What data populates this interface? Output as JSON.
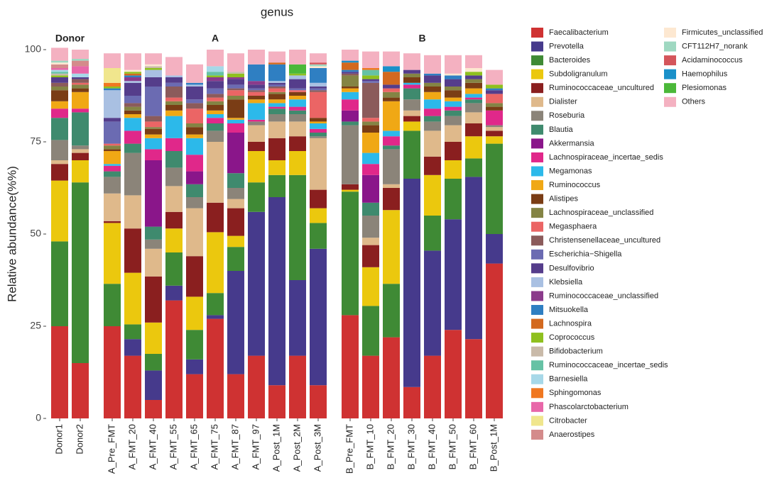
{
  "chart_data": {
    "type": "stacked_bar",
    "title": "genus",
    "y_label": "Relative abundance(%%)",
    "categories": [
      "Donor1",
      "Donor2",
      "A_Pre_FMT",
      "A_FMT_20",
      "A_FMT_40",
      "A_FMT_55",
      "A_FMT_65",
      "A_FMT_75",
      "A_FMT_87",
      "A_FMT_97",
      "A_Post_1M",
      "A_Post_2M",
      "A_Post_3M",
      "B_Pre_FMT",
      "B_FMT_10",
      "B_FMT_20",
      "B_FMT_30",
      "B_FMT_40",
      "B_FMT_50",
      "B_FMT_60",
      "B_Post_1M"
    ],
    "groups": [
      "Donor",
      "Donor",
      "A",
      "A",
      "A",
      "A",
      "A",
      "A",
      "A",
      "A",
      "A",
      "A",
      "A",
      "B",
      "B",
      "B",
      "B",
      "B",
      "B",
      "B",
      "B"
    ],
    "ylim": [
      0,
      100
    ],
    "yticks": [
      0,
      25,
      50,
      75,
      100
    ],
    "series": [
      {
        "name": "Faecalibacterium",
        "color": "#cf3232",
        "values": [
          25,
          15,
          25,
          17,
          5,
          32,
          12,
          27,
          12,
          17,
          9,
          17,
          9,
          28,
          17,
          22,
          8.5,
          17,
          24,
          21.5,
          42
        ]
      },
      {
        "name": "Prevotella",
        "color": "#463a8c",
        "values": [
          0,
          0,
          0,
          4.5,
          8,
          4,
          4,
          1,
          28,
          39,
          51,
          20.5,
          37,
          0,
          0,
          0,
          56.5,
          28.5,
          30,
          44,
          8
        ]
      },
      {
        "name": "Bacteroides",
        "color": "#3f8a35",
        "values": [
          23,
          49,
          11.5,
          4,
          4.5,
          9,
          8,
          6,
          6.5,
          8,
          6,
          28.5,
          7,
          33.5,
          13.5,
          14.5,
          13,
          9.5,
          11,
          5,
          24.5
        ]
      },
      {
        "name": "Subdoligranulum",
        "color": "#ebc80e",
        "values": [
          16.5,
          6,
          16.5,
          14,
          8.5,
          6.5,
          9,
          16.5,
          3,
          8.5,
          4,
          6.5,
          4,
          0.5,
          10.5,
          20,
          2.5,
          11,
          5,
          6,
          2
        ]
      },
      {
        "name": "Ruminococcaceae_uncultured",
        "color": "#8a1f1f",
        "values": [
          4.5,
          2,
          0.5,
          12,
          12.5,
          4.5,
          11,
          8,
          7.5,
          2.5,
          6,
          4,
          5,
          1.5,
          6,
          6,
          1.5,
          5,
          5,
          3.5,
          1.5
        ]
      },
      {
        "name": "Dialister",
        "color": "#dfb98b",
        "values": [
          1,
          1,
          7.5,
          9,
          7.5,
          7,
          13,
          16.5,
          2.5,
          4.5,
          4.5,
          4,
          14,
          0,
          2,
          1,
          1.5,
          7,
          4.5,
          3,
          1
        ]
      },
      {
        "name": "Roseburia",
        "color": "#8b8479",
        "values": [
          5.5,
          1,
          4.5,
          11.5,
          2.5,
          5,
          3,
          3,
          3,
          1,
          2,
          2,
          0.5,
          16,
          6,
          9.5,
          3,
          2.5,
          2.5,
          2.5,
          0.5
        ]
      },
      {
        "name": "Blautia",
        "color": "#3f8a6e",
        "values": [
          6,
          9,
          1.5,
          2.5,
          3.5,
          4.5,
          3.5,
          2,
          4,
          0,
          1.5,
          1,
          1,
          1,
          3.5,
          1,
          3,
          1.5,
          1.5,
          1,
          0
        ]
      },
      {
        "name": "Akkermansia",
        "color": "#8a168a",
        "values": [
          0,
          0,
          0,
          0,
          18,
          0,
          3.5,
          0,
          11,
          0,
          0,
          0,
          0,
          3,
          7.5,
          0,
          0,
          0,
          0,
          0,
          0
        ]
      },
      {
        "name": "Lachnospiraceae_incertae_sedis",
        "color": "#e0288a",
        "values": [
          2.5,
          1,
          1.5,
          3.5,
          3,
          3.5,
          4.5,
          1.5,
          2.5,
          0.5,
          0.5,
          1,
          1,
          3,
          3,
          2.5,
          1,
          2,
          1,
          0.5,
          4
        ]
      },
      {
        "name": "Megamonas",
        "color": "#2cb9ea",
        "values": [
          0,
          0,
          0.5,
          3.5,
          3,
          6,
          4.5,
          1,
          1,
          4.5,
          1,
          2,
          1.5,
          2,
          3,
          1.5,
          0.5,
          2.5,
          1.5,
          1,
          0
        ]
      },
      {
        "name": "Ruminococcus",
        "color": "#f0a815",
        "values": [
          2,
          4.5,
          3.5,
          1,
          1,
          1.5,
          1,
          1,
          0.5,
          1,
          1,
          1,
          0.5,
          1,
          5.5,
          8,
          0,
          2,
          1,
          1.5,
          0
        ]
      },
      {
        "name": "Alistipes",
        "color": "#7a3d15",
        "values": [
          3,
          1,
          0.5,
          1,
          1.5,
          1.5,
          2,
          1.5,
          5,
          1,
          1.5,
          1,
          1,
          0.5,
          2,
          1,
          1.5,
          1.5,
          2,
          1.5,
          1
        ]
      },
      {
        "name": "Lachnospiraceae_unclassified",
        "color": "#848444",
        "values": [
          1,
          1,
          1,
          1,
          0.5,
          1,
          1,
          1,
          1,
          0,
          0.5,
          0,
          0,
          3,
          1,
          1.5,
          1,
          1,
          1,
          1,
          1
        ]
      },
      {
        "name": "Megasphaera",
        "color": "#eb6565",
        "values": [
          0,
          0.5,
          0.5,
          0,
          1.5,
          1,
          4,
          1,
          1.5,
          1,
          1,
          0.5,
          7,
          0,
          1,
          1,
          0,
          0,
          0,
          0,
          2.5
        ]
      },
      {
        "name": "Christensenellaceae_uncultured",
        "color": "#8b5b5b",
        "values": [
          1,
          1,
          0,
          1,
          1.5,
          3,
          1.5,
          1,
          0.5,
          0.5,
          0.5,
          0,
          0.5,
          0.5,
          9.5,
          0,
          0,
          0,
          0,
          0,
          0
        ]
      },
      {
        "name": "Escherichia−Shigella",
        "color": "#6b6bb2",
        "values": [
          0,
          0,
          6,
          2,
          8,
          1,
          1,
          1.5,
          1,
          0.5,
          0.5,
          0.5,
          0.5,
          0,
          0.5,
          0,
          0,
          0,
          0,
          0,
          0
        ]
      },
      {
        "name": "Desulfovibrio",
        "color": "#553d8b",
        "values": [
          1.5,
          0.5,
          1,
          3.5,
          2.5,
          1.5,
          3.5,
          2,
          1.5,
          1,
          0.5,
          2.5,
          0.5,
          0.5,
          0.5,
          1,
          1,
          2,
          2,
          1,
          1
        ]
      },
      {
        "name": "Klebsiella",
        "color": "#a9c0e2",
        "values": [
          0,
          0,
          7.5,
          0.5,
          2,
          0.5,
          0.5,
          0,
          0,
          0,
          0.5,
          1,
          1,
          0,
          0,
          0,
          0,
          0,
          0,
          0,
          0
        ]
      },
      {
        "name": "Ruminococcaceae_unclassified",
        "color": "#8b3b8b",
        "values": [
          0,
          0,
          0,
          1,
          0,
          0,
          0,
          1,
          0.5,
          1,
          0,
          0,
          0,
          0,
          0,
          0,
          0,
          0,
          0,
          0,
          0
        ]
      },
      {
        "name": "Mitsuokella",
        "color": "#2f7fc2",
        "values": [
          0,
          0,
          0.5,
          0.5,
          0,
          0,
          0.5,
          0,
          0,
          4.5,
          4.5,
          0,
          4,
          0.5,
          0,
          0,
          0,
          0.5,
          1,
          0,
          0.5
        ]
      },
      {
        "name": "Lachnospira",
        "color": "#d3691f",
        "values": [
          0,
          0,
          0,
          0.5,
          0,
          0,
          0,
          0,
          0,
          0,
          0.5,
          0,
          0,
          2,
          0,
          3.5,
          0,
          0,
          0,
          0,
          0
        ]
      },
      {
        "name": "Coprococcus",
        "color": "#8fc01f",
        "values": [
          0.5,
          0,
          0.5,
          0.5,
          0.5,
          0,
          0,
          0.5,
          1,
          0,
          0,
          0.5,
          0,
          0,
          1,
          0,
          0,
          0,
          0,
          1,
          1
        ]
      },
      {
        "name": "Bifidobacterium",
        "color": "#c9baa9",
        "values": [
          0.5,
          0,
          0,
          0,
          0.5,
          0,
          0,
          0,
          0.5,
          0,
          0,
          0,
          0,
          0,
          0,
          0,
          0,
          0,
          0,
          0,
          0
        ]
      },
      {
        "name": "Ruminococcaceae_incertae_sedis",
        "color": "#66c2a5",
        "values": [
          0.5,
          0,
          0,
          0,
          0,
          0,
          0,
          1,
          0,
          0,
          0,
          0,
          0,
          0,
          1.5,
          0,
          0,
          0,
          0,
          0,
          0
        ]
      },
      {
        "name": "Barnesiella",
        "color": "#a7d8e8",
        "values": [
          0.5,
          1,
          0,
          0,
          0,
          0,
          0,
          1.5,
          0,
          0,
          0,
          0,
          0,
          0,
          0,
          0,
          0,
          0,
          0,
          0,
          0
        ]
      },
      {
        "name": "Sphingomonas",
        "color": "#f07821",
        "values": [
          0,
          0,
          1,
          0,
          0,
          0,
          0,
          0,
          0,
          0,
          0,
          0,
          0,
          0,
          0.5,
          0,
          0,
          0,
          0,
          0,
          0
        ]
      },
      {
        "name": "Phascolarctobacterium",
        "color": "#e867a9",
        "values": [
          0.5,
          2,
          0,
          0,
          0,
          0,
          0,
          0,
          0,
          0,
          0,
          0,
          0,
          0,
          0,
          0,
          0,
          0,
          0,
          0,
          0
        ]
      },
      {
        "name": "Citrobacter",
        "color": "#f0e68d",
        "values": [
          0,
          0,
          4,
          0,
          0,
          0,
          0,
          0,
          0,
          0,
          0,
          0,
          0,
          0,
          0,
          0,
          0,
          0,
          0,
          0,
          0
        ]
      },
      {
        "name": "Anaerostipes",
        "color": "#d48b8b",
        "values": [
          1,
          1.5,
          0,
          0,
          0,
          0,
          0,
          0,
          0,
          0,
          0,
          0,
          0,
          0,
          0,
          0,
          0,
          0,
          0,
          0,
          0
        ]
      },
      {
        "name": "Firmicutes_unclassified",
        "color": "#fde8d1",
        "values": [
          0.5,
          0,
          0,
          0.5,
          0.5,
          0,
          0,
          0,
          0,
          0,
          0,
          0,
          0.5,
          0,
          0,
          0,
          0,
          0,
          0.5,
          1,
          0
        ]
      },
      {
        "name": "CFT112H7_norank",
        "color": "#9fd8c1",
        "values": [
          0.5,
          0.5,
          0,
          0,
          0,
          0,
          0,
          0,
          0,
          0,
          0,
          0,
          0.5,
          0,
          0,
          0,
          0,
          0,
          0,
          0,
          0
        ]
      },
      {
        "name": "Acidaminococcus",
        "color": "#d4555b",
        "values": [
          0,
          0,
          0,
          0,
          0,
          0,
          0,
          0,
          0,
          0,
          0,
          0,
          0.5,
          0,
          0,
          0,
          0,
          0,
          0,
          0,
          0
        ]
      },
      {
        "name": "Haemophilus",
        "color": "#1a90c9",
        "values": [
          0,
          0,
          0,
          0,
          0,
          0,
          0,
          0,
          0,
          0,
          0,
          0,
          0,
          0.5,
          0,
          1.5,
          0,
          0,
          0,
          0,
          0
        ]
      },
      {
        "name": "Plesiomonas",
        "color": "#4bb839",
        "values": [
          0,
          0,
          0,
          0,
          0,
          0,
          0,
          0,
          0,
          0,
          0,
          2.5,
          0,
          0,
          0,
          0,
          0,
          0,
          0,
          0,
          0
        ]
      },
      {
        "name": "Others",
        "color": "#f4b1c1",
        "values": [
          3.5,
          2.5,
          4,
          4.5,
          3,
          5,
          5,
          4.5,
          5,
          4,
          3,
          4,
          2.5,
          3,
          4.5,
          4,
          4.5,
          5,
          5,
          3.5,
          4
        ]
      }
    ]
  }
}
